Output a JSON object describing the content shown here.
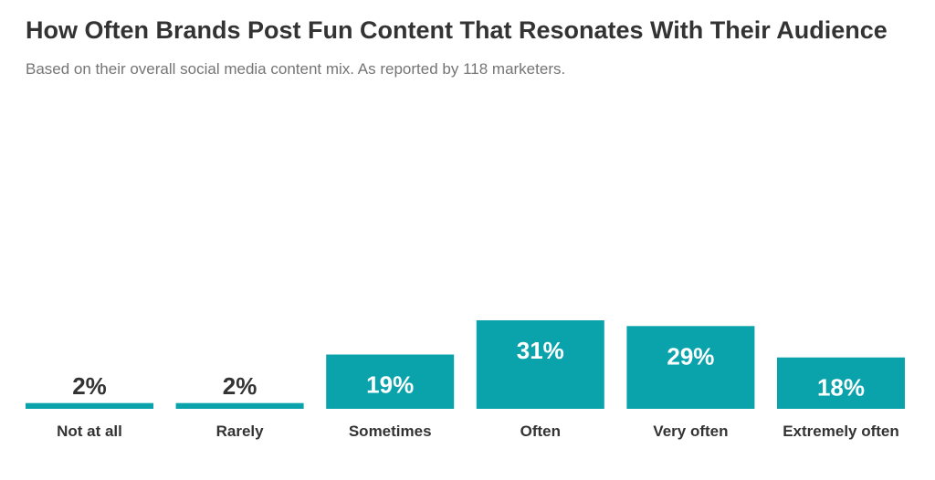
{
  "title": "How Often Brands Post Fun Content That Resonates With Their Audience",
  "subtitle": "Based on their overall social media content mix. As reported by 118 marketers.",
  "colors": {
    "bar": "#0aa3ac",
    "label_inside": "#ffffff",
    "label_outside": "#333333",
    "category": "#333333"
  },
  "chart_data": {
    "type": "bar",
    "categories": [
      "Not at all",
      "Rarely",
      "Sometimes",
      "Often",
      "Very often",
      "Extremely often"
    ],
    "values": [
      2,
      2,
      19,
      31,
      29,
      18
    ],
    "value_labels": [
      "2%",
      "2%",
      "19%",
      "31%",
      "29%",
      "18%"
    ],
    "title": "How Often Brands Post Fun Content That Resonates With Their Audience",
    "subtitle": "Based on their overall social media content mix. As reported by 118 marketers.",
    "xlabel": "",
    "ylabel": "",
    "ylim": [
      0,
      31
    ],
    "grid": false,
    "legend": "none"
  }
}
